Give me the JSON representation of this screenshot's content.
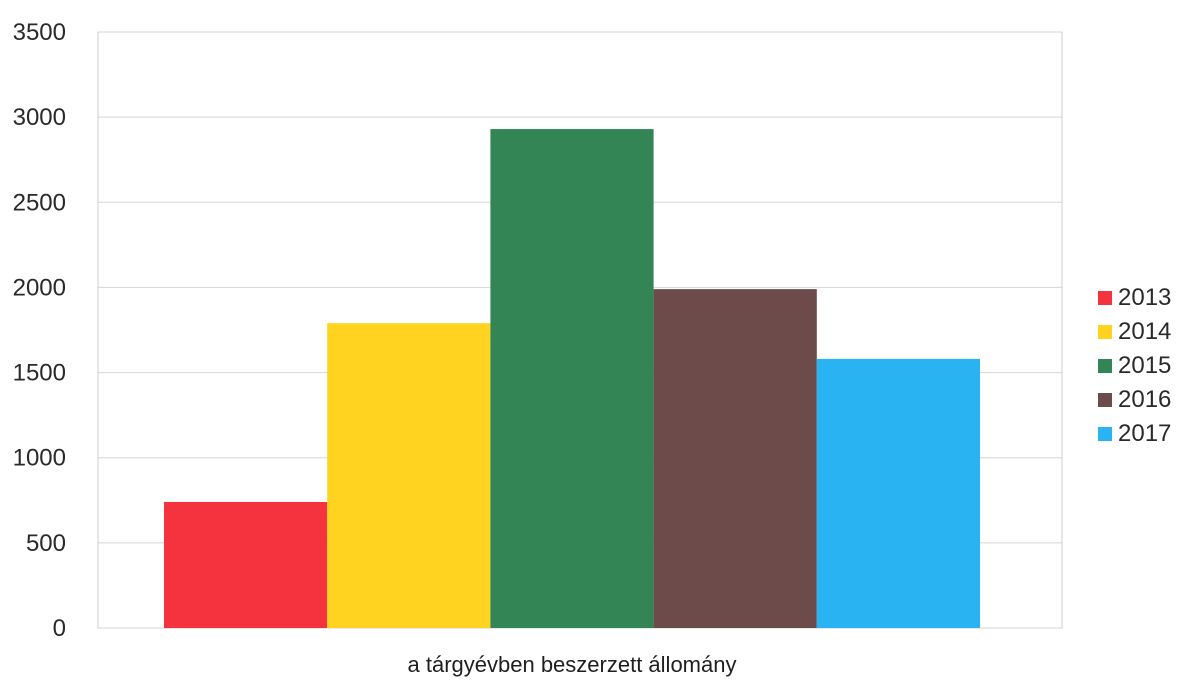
{
  "chart_data": {
    "type": "bar",
    "categories": [
      "a tárgyévben beszerzett állomány"
    ],
    "series": [
      {
        "name": "2013",
        "values": [
          740
        ],
        "color": "#f5333f"
      },
      {
        "name": "2014",
        "values": [
          1790
        ],
        "color": "#ffd320"
      },
      {
        "name": "2015",
        "values": [
          2930
        ],
        "color": "#338556"
      },
      {
        "name": "2016",
        "values": [
          1990
        ],
        "color": "#6e4b4b"
      },
      {
        "name": "2017",
        "values": [
          1580
        ],
        "color": "#2ab3f3"
      }
    ],
    "yticks": [
      "0",
      "500",
      "1000",
      "1500",
      "2000",
      "2500",
      "3000",
      "3500"
    ],
    "ylim": [
      0,
      3500
    ],
    "grid": true,
    "legend_position": "right",
    "title": "",
    "xlabel": "",
    "ylabel": ""
  }
}
